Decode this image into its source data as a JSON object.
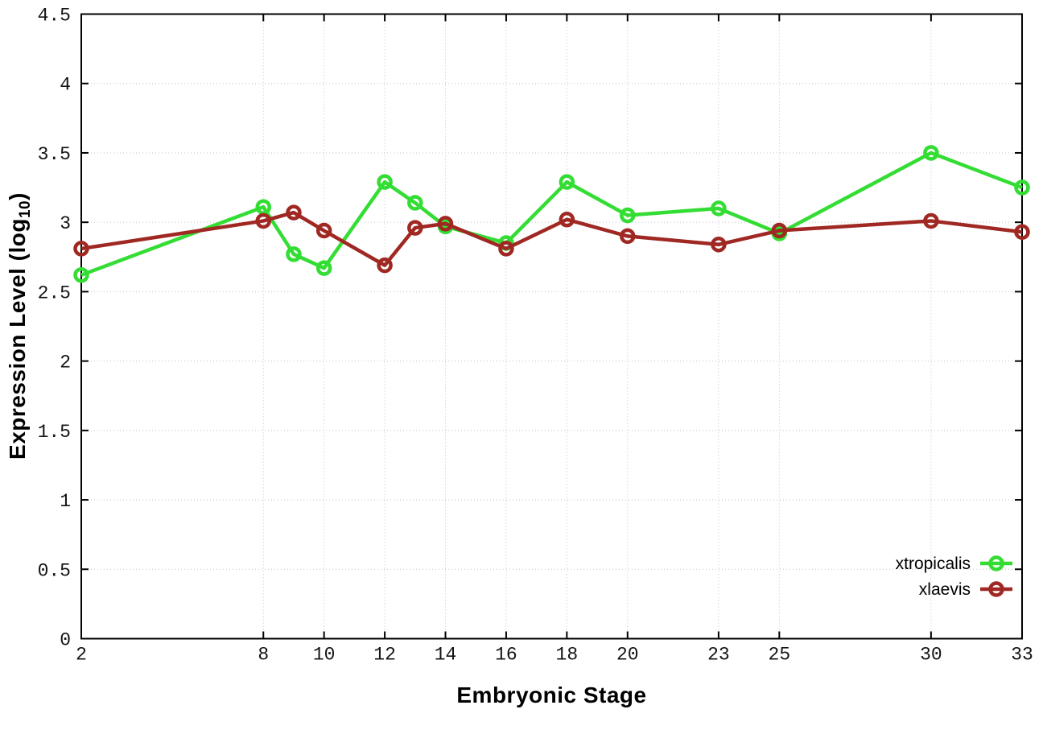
{
  "chart_data": {
    "type": "line",
    "title": "",
    "xlabel": "Embryonic Stage",
    "ylabel": "Expression Level (log10)",
    "ylabel_parts": {
      "main": "Expression Level (log",
      "sub": "10",
      "end": ")"
    },
    "x": [
      2,
      8,
      9,
      10,
      12,
      13,
      14,
      16,
      18,
      20,
      23,
      25,
      30,
      33
    ],
    "series": [
      {
        "name": "xtropicalis",
        "color": "#33dd33",
        "marker": "open-circle",
        "values": [
          2.62,
          3.11,
          2.77,
          2.67,
          3.29,
          3.14,
          2.97,
          2.85,
          3.29,
          3.05,
          3.1,
          2.92,
          3.5,
          3.25
        ]
      },
      {
        "name": "xlaevis",
        "color": "#a02823",
        "marker": "open-circle",
        "values": [
          2.81,
          3.01,
          3.07,
          2.94,
          2.69,
          2.96,
          2.99,
          2.81,
          3.02,
          2.9,
          2.84,
          2.94,
          3.01,
          2.93
        ]
      }
    ],
    "xlim": [
      2,
      33
    ],
    "ylim": [
      0,
      4.5
    ],
    "x_ticks": [
      2,
      8,
      10,
      12,
      14,
      16,
      18,
      20,
      23,
      25,
      30,
      33
    ],
    "y_ticks": [
      0,
      0.5,
      1,
      1.5,
      2,
      2.5,
      3,
      3.5,
      4,
      4.5
    ],
    "grid": true,
    "grid_style": "dotted",
    "grid_color": "#c2c2c2",
    "axis_color": "#000000",
    "background": "#ffffff",
    "legend_position": "bottom-right"
  }
}
